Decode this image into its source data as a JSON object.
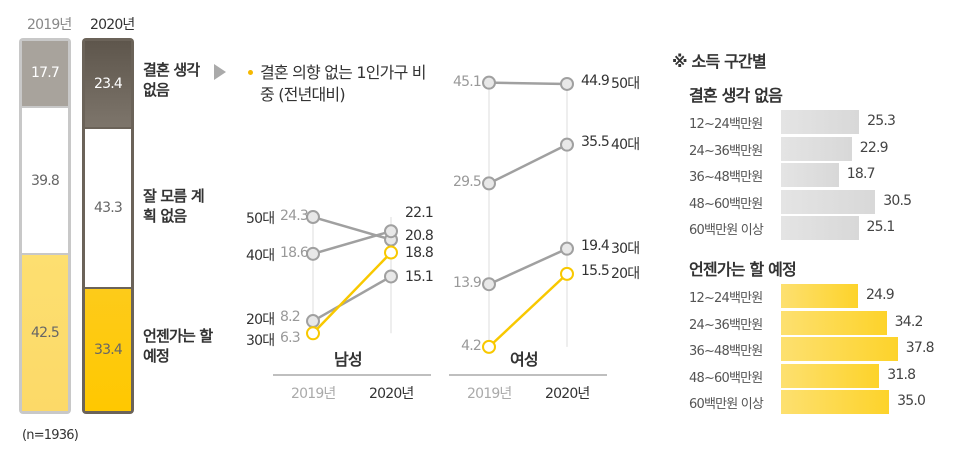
{
  "chart_data": [
    {
      "type": "bar",
      "stacked": true,
      "categories": [
        "2019년",
        "2020년"
      ],
      "series": [
        {
          "name": "결혼 생각 없음",
          "values": [
            17.7,
            23.4
          ],
          "colors": [
            "#a8a39c",
            "#6b6359"
          ]
        },
        {
          "name": "잘 모름 계획 없음",
          "values": [
            39.8,
            43.3
          ],
          "colors": [
            "#ffffff",
            "#ffffff"
          ]
        },
        {
          "name": "언젠가는 할 예정",
          "values": [
            42.5,
            33.4
          ],
          "colors": [
            "#fddf70",
            "#fdcb1a"
          ]
        }
      ],
      "note": "(n=1936)"
    },
    {
      "type": "line",
      "title": "결혼 의향 없는 1인가구 비중 (전년대비)",
      "panels": [
        {
          "name": "남성",
          "x": [
            "2019년",
            "2020년"
          ],
          "series": [
            {
              "name": "50대",
              "values": [
                24.3,
                20.8
              ],
              "color": "#a0a0a0"
            },
            {
              "name": "40대",
              "values": [
                18.6,
                22.1
              ],
              "color": "#a0a0a0"
            },
            {
              "name": "20대",
              "values": [
                8.2,
                15.1
              ],
              "color": "#a0a0a0"
            },
            {
              "name": "30대",
              "values": [
                6.3,
                18.8
              ],
              "color": "#f8c800"
            }
          ]
        },
        {
          "name": "여성",
          "x": [
            "2019년",
            "2020년"
          ],
          "series": [
            {
              "name": "50대",
              "values": [
                45.1,
                44.9
              ],
              "color": "#a0a0a0"
            },
            {
              "name": "40대",
              "values": [
                29.5,
                35.5
              ],
              "color": "#a0a0a0"
            },
            {
              "name": "30대",
              "values": [
                13.9,
                19.4
              ],
              "color": "#a0a0a0"
            },
            {
              "name": "20대",
              "values": [
                4.2,
                15.5
              ],
              "color": "#f8c800"
            }
          ]
        }
      ]
    },
    {
      "type": "bar",
      "orientation": "horizontal",
      "title": "※ 소득 구간별",
      "groups": [
        {
          "name": "결혼 생각 없음",
          "color": "#d8d8d8",
          "categories": [
            "12~24백만원",
            "24~36백만원",
            "36~48백만원",
            "48~60백만원",
            "60백만원 이상"
          ],
          "values": [
            "25.3",
            "22.9",
            "18.7",
            "30.5",
            "25.1"
          ]
        },
        {
          "name": "언젠가는 할 예정",
          "color": "#fdd535",
          "categories": [
            "12~24백만원",
            "24~36백만원",
            "36~48백만원",
            "48~60백만원",
            "60백만원 이상"
          ],
          "values": [
            "24.9",
            "34.2",
            "37.8",
            "31.8",
            "35.0"
          ]
        }
      ]
    }
  ]
}
